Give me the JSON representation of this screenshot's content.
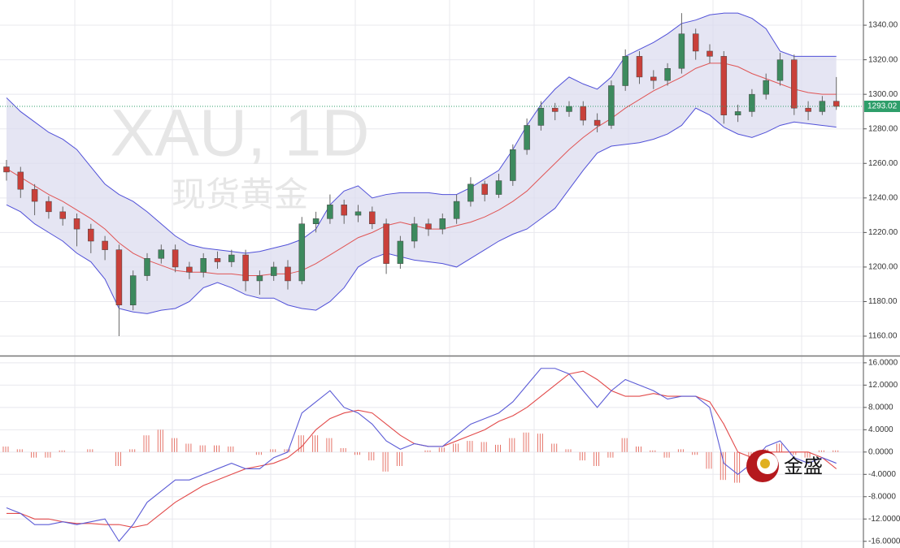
{
  "chart_data": [
    {
      "type": "candlestick",
      "watermark": "XAU, 1D",
      "subtitle": "现货黄金",
      "open": [
        1258,
        1255,
        1245,
        1238,
        1232,
        1228,
        1222,
        1215,
        1210,
        1178,
        1195,
        1205,
        1210,
        1200,
        1197,
        1205,
        1203,
        1207,
        1192,
        1195,
        1200,
        1192,
        1225,
        1228,
        1236,
        1230,
        1232,
        1225,
        1202,
        1215,
        1225,
        1222,
        1228,
        1238,
        1248,
        1242,
        1250,
        1268,
        1282,
        1292,
        1290,
        1293,
        1285,
        1282,
        1305,
        1322,
        1310,
        1308,
        1315,
        1335,
        1325,
        1322,
        1288,
        1290,
        1300,
        1308,
        1320,
        1292,
        1290,
        1296
      ],
      "high": [
        1262,
        1258,
        1248,
        1241,
        1235,
        1231,
        1225,
        1218,
        1213,
        1198,
        1208,
        1213,
        1213,
        1203,
        1208,
        1209,
        1210,
        1210,
        1198,
        1203,
        1204,
        1229,
        1232,
        1242,
        1239,
        1236,
        1235,
        1228,
        1218,
        1229,
        1228,
        1231,
        1242,
        1252,
        1250,
        1254,
        1271,
        1286,
        1296,
        1295,
        1296,
        1296,
        1289,
        1308,
        1326,
        1325,
        1314,
        1318,
        1347,
        1338,
        1329,
        1325,
        1294,
        1303,
        1312,
        1324,
        1323,
        1296,
        1299,
        1310
      ],
      "low": [
        1250,
        1240,
        1230,
        1228,
        1224,
        1212,
        1208,
        1204,
        1160,
        1175,
        1192,
        1202,
        1197,
        1193,
        1194,
        1199,
        1200,
        1186,
        1184,
        1192,
        1187,
        1190,
        1220,
        1225,
        1225,
        1226,
        1222,
        1196,
        1199,
        1211,
        1218,
        1219,
        1225,
        1235,
        1238,
        1240,
        1247,
        1265,
        1279,
        1285,
        1287,
        1282,
        1278,
        1280,
        1302,
        1306,
        1303,
        1305,
        1312,
        1320,
        1318,
        1283,
        1284,
        1287,
        1297,
        1305,
        1288,
        1285,
        1288,
        1291
      ],
      "close": [
        1255,
        1245,
        1238,
        1232,
        1228,
        1222,
        1215,
        1210,
        1178,
        1195,
        1205,
        1210,
        1200,
        1197,
        1205,
        1203,
        1207,
        1192,
        1195,
        1200,
        1192,
        1225,
        1228,
        1236,
        1230,
        1232,
        1225,
        1202,
        1215,
        1225,
        1222,
        1228,
        1238,
        1248,
        1242,
        1250,
        1268,
        1282,
        1292,
        1290,
        1293,
        1285,
        1282,
        1305,
        1322,
        1310,
        1308,
        1315,
        1335,
        1325,
        1322,
        1288,
        1290,
        1300,
        1308,
        1320,
        1292,
        1290,
        1296,
        1293.02
      ],
      "up_color": "#3d8a5e",
      "down_color": "#c9403a",
      "bands": {
        "upper": [
          1298,
          1290,
          1284,
          1278,
          1274,
          1268,
          1258,
          1248,
          1242,
          1238,
          1232,
          1225,
          1218,
          1213,
          1211,
          1210,
          1209,
          1208,
          1209,
          1211,
          1213,
          1216,
          1222,
          1236,
          1244,
          1247,
          1240,
          1242,
          1243,
          1243,
          1243,
          1242,
          1242,
          1246,
          1251,
          1256,
          1268,
          1282,
          1294,
          1303,
          1310,
          1306,
          1303,
          1310,
          1322,
          1326,
          1330,
          1335,
          1341,
          1343,
          1346,
          1347,
          1347,
          1344,
          1338,
          1325,
          1322,
          1322,
          1322,
          1322
        ],
        "middle": [
          1257,
          1252,
          1247,
          1242,
          1238,
          1233,
          1228,
          1222,
          1214,
          1208,
          1204,
          1201,
          1198,
          1197,
          1197,
          1196,
          1196,
          1195,
          1195,
          1196,
          1196,
          1198,
          1202,
          1207,
          1212,
          1217,
          1220,
          1224,
          1226,
          1224,
          1222,
          1222,
          1224,
          1226,
          1229,
          1233,
          1238,
          1244,
          1252,
          1260,
          1268,
          1275,
          1281,
          1286,
          1292,
          1297,
          1302,
          1306,
          1310,
          1315,
          1318,
          1318,
          1316,
          1312,
          1309,
          1306,
          1303,
          1301,
          1300,
          1300
        ],
        "lower": [
          1236,
          1232,
          1225,
          1220,
          1215,
          1208,
          1203,
          1193,
          1176,
          1174,
          1173,
          1175,
          1176,
          1180,
          1188,
          1191,
          1188,
          1184,
          1182,
          1182,
          1178,
          1176,
          1175,
          1180,
          1188,
          1200,
          1205,
          1208,
          1206,
          1204,
          1203,
          1202,
          1200,
          1205,
          1210,
          1215,
          1219,
          1222,
          1228,
          1234,
          1245,
          1256,
          1266,
          1270,
          1271,
          1272,
          1274,
          1277,
          1282,
          1292,
          1288,
          1281,
          1277,
          1275,
          1278,
          1282,
          1284,
          1283,
          1282,
          1281
        ],
        "band_color": "#5050d8",
        "middle_color": "#e05555",
        "fill_color": "#dcdcef"
      },
      "last_price_color": "#2e9e6a",
      "ylim": [
        1149.2,
        1354.6
      ],
      "yticks": [
        {
          "value": 1160,
          "label": "1160.00"
        },
        {
          "value": 1180,
          "label": "1180.00"
        },
        {
          "value": 1200,
          "label": "1200.00"
        },
        {
          "value": 1220,
          "label": "1220.00"
        },
        {
          "value": 1240,
          "label": "1240.00"
        },
        {
          "value": 1260,
          "label": "1260.00"
        },
        {
          "value": 1280,
          "label": "1280.00"
        },
        {
          "value": 1300,
          "label": "1300.00"
        },
        {
          "value": 1320,
          "label": "1320.00"
        },
        {
          "value": 1340,
          "label": "1340.00"
        }
      ],
      "grid": true
    },
    {
      "type": "macd",
      "macd": [
        -10,
        -11,
        -13,
        -13,
        -12.5,
        -13,
        -12.5,
        -12,
        -16,
        -13,
        -9,
        -7,
        -5,
        -5,
        -4,
        -3,
        -2,
        -3,
        -3,
        -1,
        0,
        7,
        9,
        11,
        8,
        7,
        5,
        2,
        0.5,
        1.5,
        1,
        1,
        3,
        5,
        6,
        7,
        9,
        12,
        15,
        15,
        14,
        11,
        8,
        11,
        13,
        12,
        11,
        9.5,
        10,
        10,
        8,
        -2,
        -4,
        -2,
        1,
        2,
        -1,
        -2,
        -1,
        -2
      ],
      "signal": [
        -11,
        -11,
        -12,
        -12,
        -12.5,
        -12.8,
        -12.8,
        -13,
        -13,
        -13.5,
        -13,
        -11,
        -9,
        -7.5,
        -6,
        -5,
        -4,
        -3,
        -2.5,
        -2,
        -1,
        1,
        4,
        6,
        7,
        7.5,
        7,
        5,
        3,
        1.5,
        1,
        1,
        2,
        3,
        4,
        5.5,
        6.5,
        8,
        10,
        12,
        14,
        14.5,
        13,
        11,
        10,
        10,
        10.5,
        10,
        10,
        10,
        9,
        5,
        0,
        -1,
        0,
        0,
        0,
        0,
        -1,
        -3
      ],
      "histogram": [
        1,
        0.5,
        -1,
        -1,
        0.3,
        0,
        0.5,
        0,
        -2.5,
        0.5,
        3,
        4,
        2.5,
        1.5,
        1.2,
        1.2,
        1,
        0,
        -0.5,
        0.5,
        0.5,
        3,
        3,
        2.5,
        0.7,
        -0.5,
        -1.5,
        -3.5,
        -2.5,
        0,
        0.3,
        0.8,
        1.5,
        2,
        1.8,
        1.3,
        2.5,
        3.5,
        3.3,
        1.5,
        0.5,
        -1.5,
        -2.5,
        -1,
        2.5,
        1,
        0.3,
        -1,
        0.5,
        -0.5,
        -3,
        -5,
        -5.5,
        -3,
        0.5,
        1.5,
        -0.5,
        -1,
        0.3,
        0.3
      ],
      "macd_color": "#5b5bd6",
      "signal_color": "#e24a4a",
      "histogram_color": "#e57368",
      "ylim": [
        -17.2,
        17
      ],
      "yticks": [
        {
          "value": -16,
          "label": "-16.0000"
        },
        {
          "value": -12,
          "label": "-12.0000"
        },
        {
          "value": -8,
          "label": "-8.0000"
        },
        {
          "value": -4,
          "label": "-4.0000"
        },
        {
          "value": 0,
          "label": "0.0000"
        },
        {
          "value": 4,
          "label": "4.0000"
        },
        {
          "value": 8,
          "label": "8.0000"
        },
        {
          "value": 12,
          "label": "12.0000"
        },
        {
          "value": 16,
          "label": "16.0000"
        }
      ],
      "grid": true
    }
  ],
  "logo": "金盛"
}
